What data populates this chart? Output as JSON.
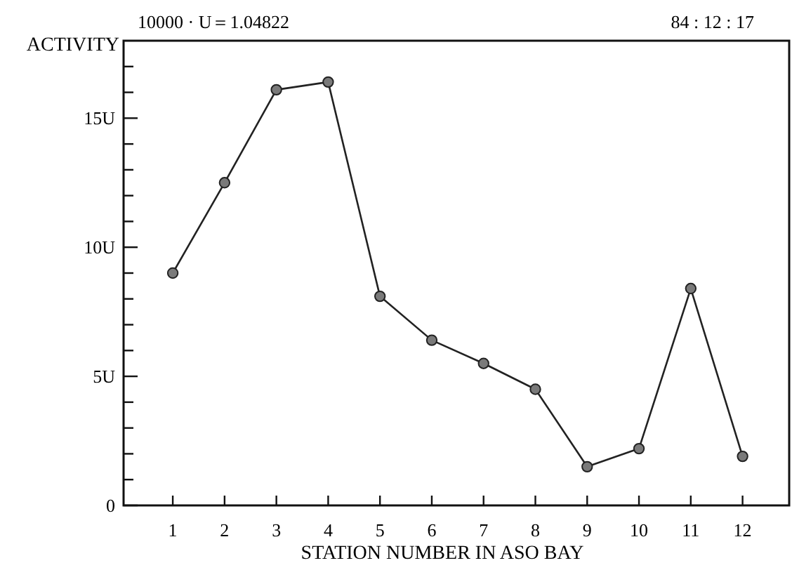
{
  "chart_data": {
    "type": "line",
    "xlabel": "STATION NUMBER IN ASO BAY",
    "ylabel": "ACTIVITY",
    "annotations": [
      "10000 · U＝1.04822",
      "84 : 12 : 17"
    ],
    "x": [
      1,
      2,
      3,
      4,
      5,
      6,
      7,
      8,
      9,
      10,
      11,
      12
    ],
    "xlim": [
      0.05,
      12.9
    ],
    "xticks": [
      1,
      2,
      3,
      4,
      5,
      6,
      7,
      8,
      9,
      10,
      11,
      12
    ],
    "series": [
      {
        "color": "#222222",
        "values": [
          9.0,
          12.5,
          16.1,
          16.4,
          8.1,
          6.4,
          5.5,
          4.5,
          1.5,
          2.2,
          8.4,
          1.9
        ]
      }
    ],
    "ylim": [
      0,
      18
    ],
    "yticks": [
      0,
      {
        "value": 1,
        "label": null
      },
      {
        "value": 2,
        "label": null
      },
      {
        "value": 3,
        "label": null
      },
      {
        "value": 4,
        "label": null
      },
      {
        "value": 5,
        "label": "5U"
      },
      {
        "value": 6,
        "label": null
      },
      {
        "value": 7,
        "label": null
      },
      {
        "value": 8,
        "label": null
      },
      {
        "value": 9,
        "label": null
      },
      {
        "value": 10,
        "label": "10U"
      },
      {
        "value": 11,
        "label": null
      },
      {
        "value": 12,
        "label": null
      },
      {
        "value": 13,
        "label": null
      },
      {
        "value": 14,
        "label": null
      },
      {
        "value": 15,
        "label": "15U"
      },
      {
        "value": 16,
        "label": null
      },
      {
        "value": 17,
        "label": null
      }
    ],
    "marker": "circle",
    "line_style": "solid",
    "grid": false
  }
}
